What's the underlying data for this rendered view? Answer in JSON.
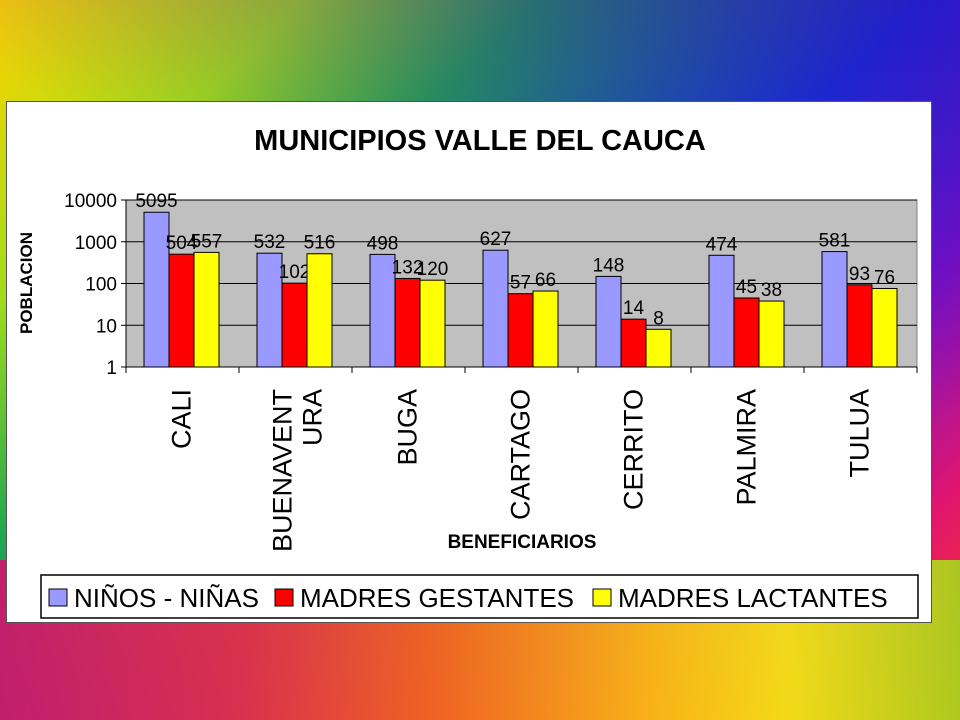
{
  "chart_data": {
    "type": "bar",
    "title": "MUNICIPIOS VALLE DEL CAUCA",
    "xlabel": "BENEFICIARIOS",
    "ylabel": "POBLACION",
    "yscale": "log",
    "ylim": [
      1,
      10000
    ],
    "yticks": [
      "10000",
      "1000",
      "100",
      "10",
      "1"
    ],
    "ytick_values": [
      10000,
      1000,
      100,
      10,
      1
    ],
    "categories": [
      [
        "CALI"
      ],
      [
        "BUENAVENT",
        "URA"
      ],
      [
        "BUGA"
      ],
      [
        "CARTAGO"
      ],
      [
        "CERRITO"
      ],
      [
        "PALMIRA"
      ],
      [
        "TULUA"
      ]
    ],
    "series": [
      {
        "name": "NIÑOS - NIÑAS",
        "color": "#9999ff",
        "values": [
          5095,
          532,
          498,
          627,
          148,
          474,
          581
        ]
      },
      {
        "name": "MADRES GESTANTES",
        "color": "#ff0000",
        "values": [
          504,
          102,
          132,
          57,
          14,
          45,
          93
        ]
      },
      {
        "name": "MADRES LACTANTES",
        "color": "#ffff00",
        "values": [
          557,
          516,
          120,
          66,
          8,
          38,
          76
        ]
      }
    ],
    "grid": true,
    "plot_background": "#c0c0c0",
    "legend_position": "bottom"
  }
}
